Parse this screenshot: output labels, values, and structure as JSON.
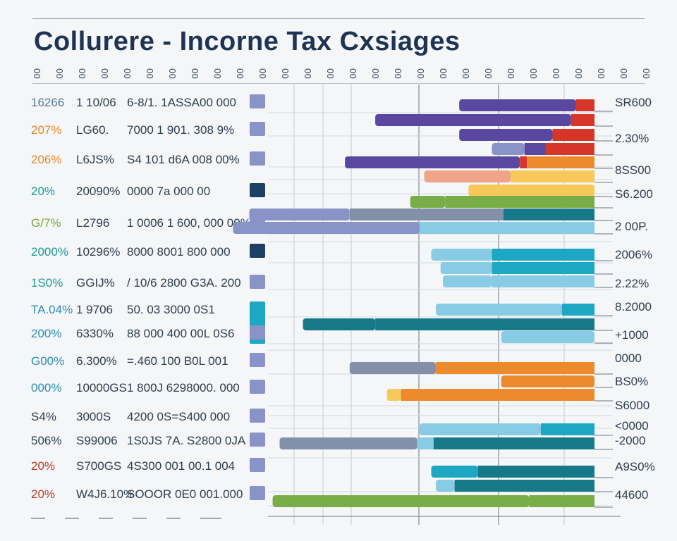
{
  "page": {
    "title": "Collurere - Incorne Tax Cxsiages"
  },
  "header_ticks": [
    "00",
    "00",
    "00",
    "00",
    "00",
    "00",
    "00",
    "00",
    "00",
    "00",
    "00",
    "00",
    "00",
    "00",
    "00",
    "00",
    "00",
    "00",
    "00",
    "00",
    "00",
    "00",
    "00",
    "00",
    "00",
    "00",
    "00",
    "00"
  ],
  "rows": [
    {
      "a": "16266",
      "a_color": "#5b7a9a",
      "b": "1 10/06",
      "c": "6-8/1. 1ASSA00 000",
      "d": "SR600"
    },
    {
      "a": "207%",
      "a_color": "#e8882a",
      "b": "LG60.",
      "c": "7000 1 901. 308 9%",
      "d": ""
    },
    {
      "a": "206%",
      "a_color": "#e8882a",
      "b": "L6JS%",
      "c": "S4 101 d6A 008 00%",
      "d": "2.30%"
    },
    {
      "a": "20%",
      "a_color": "#1a9b9b",
      "b": "20090%",
      "c": "0000 7a 000 00",
      "d": "8SS00"
    },
    {
      "a": "G/7%",
      "a_color": "#7aa83a",
      "b": "L2796",
      "c": "1 0006 1 600, 000 00%",
      "d": "S6.200"
    },
    {
      "a": "2000%",
      "a_color": "#1a9b9b",
      "b": "10296%",
      "c": "8000 8001 800 000",
      "d": "2 00P."
    },
    {
      "a": "1S0%",
      "a_color": "#1a9b9b",
      "b": "GGIJ%",
      "c": "/ 10/6 2800 G3A. 200",
      "d": "2006%"
    },
    {
      "a": "TA.04%",
      "a_color": "#2b8fb0",
      "b": "1 9706",
      "c": "50. 03 3000 0S1",
      "d": "2.22%"
    },
    {
      "a": "200%",
      "a_color": "#2b8fb0",
      "b": "6330%",
      "c": "88 000 400 00L 0S6",
      "d": "8.2000"
    },
    {
      "a": "G00%",
      "a_color": "#2b8fb0",
      "b": "6.300%",
      "c": "=.460 100 B0L 001",
      "d": "+1000"
    },
    {
      "a": "000%",
      "a_color": "#2b8fb0",
      "b": "10000GS",
      "c": "1 800J 6298000. 000",
      "d": "0000"
    },
    {
      "a": "S4%",
      "a_color": "#2f3d4f",
      "b": "3000S",
      "c": "4200 0S=S400 000",
      "d": "BS0%"
    },
    {
      "a": "506%",
      "a_color": "#2f3d4f",
      "b": "S99006",
      "c": "1S0JS 7A. S2800 0JA",
      "d": "S6000"
    },
    {
      "a": "20%",
      "a_color": "#c0392b",
      "b": "S700GS",
      "c": "4S300 001 00.1 004",
      "d": "<0000"
    },
    {
      "a": "20%",
      "a_color": "#c0392b",
      "b": "W4J6.10%",
      "c": "SOOOR 0E0 001.000",
      "d": "-2000"
    },
    {
      "a": "",
      "a_color": "#2f3d4f",
      "b": "",
      "c": "",
      "d": "A9S0%"
    },
    {
      "a": "",
      "a_color": "#2f3d4f",
      "b": "",
      "c": "",
      "d": "44600"
    }
  ],
  "chart_data": {
    "type": "bar",
    "title": "Collurere - Incorne Tax Cxsiages",
    "orientation": "horizontal-stacked",
    "grid": true,
    "colors": {
      "purple": "#5a48a0",
      "lavender": "#8a93c8",
      "red": "#d6362a",
      "orange": "#ee8a2e",
      "salmon": "#f0a48a",
      "yellow": "#f6c95a",
      "green": "#79ad48",
      "lightblue": "#88cbe4",
      "teal": "#1ea7c2",
      "darkteal": "#167989",
      "gray": "#8391a8",
      "navy": "#1d3f63"
    },
    "bars": [
      {
        "segments": [
          {
            "v": 50,
            "c": "purple"
          },
          {
            "v": 8,
            "c": "red"
          }
        ]
      },
      {
        "segments": [
          {
            "v": 84,
            "c": "purple"
          },
          {
            "v": 10,
            "c": "red"
          }
        ]
      },
      {
        "segments": [
          {
            "v": 40,
            "c": "purple"
          },
          {
            "v": 18,
            "c": "red"
          }
        ]
      },
      {
        "segments": [
          {
            "v": 14,
            "c": "lavender"
          },
          {
            "v": 9,
            "c": "purple"
          },
          {
            "v": 21,
            "c": "red"
          }
        ]
      },
      {
        "segments": [
          {
            "v": 75,
            "c": "purple"
          },
          {
            "v": 3,
            "c": "red"
          },
          {
            "v": 29,
            "c": "orange"
          }
        ]
      },
      {
        "segments": [
          {
            "v": 37,
            "c": "salmon"
          },
          {
            "v": 36,
            "c": "yellow"
          }
        ]
      },
      {
        "segments": [
          {
            "v": 54,
            "c": "yellow"
          }
        ]
      },
      {
        "segments": [
          {
            "v": 15,
            "c": "green"
          },
          {
            "v": 64,
            "c": "green"
          }
        ]
      },
      {
        "segments": [
          {
            "v": 43,
            "c": "lavender"
          },
          {
            "v": 66,
            "c": "gray"
          },
          {
            "v": 39,
            "c": "darkteal"
          }
        ]
      },
      {
        "segments": [
          {
            "v": 80,
            "c": "lavender"
          },
          {
            "v": 38,
            "c": "lightblue"
          },
          {
            "v": 37,
            "c": "lightblue"
          }
        ]
      },
      {
        "segments": [
          {
            "v": 26,
            "c": "lightblue"
          },
          {
            "v": 44,
            "c": "teal"
          }
        ]
      },
      {
        "segments": [
          {
            "v": 22,
            "c": "lightblue"
          },
          {
            "v": 44,
            "c": "teal"
          }
        ]
      },
      {
        "segments": [
          {
            "v": 21,
            "c": "lightblue"
          },
          {
            "v": 44,
            "c": "lightblue"
          }
        ]
      },
      {
        "segments": [
          {
            "v": 54,
            "c": "lightblue"
          },
          {
            "v": 14,
            "c": "teal"
          }
        ]
      },
      {
        "segments": [
          {
            "v": 31,
            "c": "darkteal"
          },
          {
            "v": 94,
            "c": "darkteal"
          }
        ]
      },
      {
        "segments": [
          {
            "v": 40,
            "c": "lightblue"
          }
        ]
      },
      {
        "segments": [
          {
            "v": 37,
            "c": "gray"
          },
          {
            "v": 68,
            "c": "orange"
          }
        ]
      },
      {
        "segments": [
          {
            "v": 40,
            "c": "orange"
          }
        ]
      },
      {
        "segments": [
          {
            "v": 6,
            "c": "yellow"
          },
          {
            "v": 39,
            "c": "orange"
          },
          {
            "v": 44,
            "c": "orange"
          }
        ]
      },
      {
        "segments": [
          {
            "v": 52,
            "c": "lightblue"
          },
          {
            "v": 23,
            "c": "teal"
          }
        ]
      },
      {
        "segments": [
          {
            "v": 59,
            "c": "gray"
          },
          {
            "v": 7,
            "c": "lightblue"
          },
          {
            "v": 69,
            "c": "darkteal"
          }
        ]
      },
      {
        "segments": [
          {
            "v": 20,
            "c": "teal"
          },
          {
            "v": 50,
            "c": "darkteal"
          }
        ]
      },
      {
        "segments": [
          {
            "v": 8,
            "c": "lightblue"
          },
          {
            "v": 60,
            "c": "darkteal"
          }
        ]
      },
      {
        "segments": [
          {
            "v": 110,
            "c": "green"
          },
          {
            "v": 28,
            "c": "green"
          }
        ]
      }
    ],
    "xlim": [
      0,
      140
    ]
  }
}
